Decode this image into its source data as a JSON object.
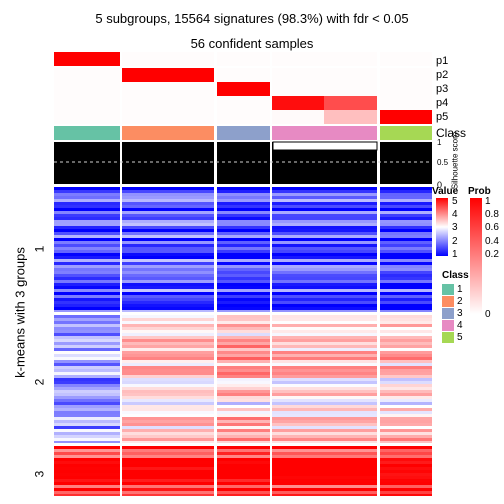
{
  "title": "5 subgroups, 15564 signatures (98.3%) with fdr < 0.05",
  "subtitle": "56 confident samples",
  "chart_data": {
    "type": "heatmap",
    "ylabel": "k-means with 3 groups",
    "row_groups": [
      "1",
      "2",
      "3"
    ],
    "prob_tracks": [
      "p1",
      "p2",
      "p3",
      "p4",
      "p5"
    ],
    "class_track_label": "Class",
    "silhouette_label": "Silhouette score",
    "silhouette_ticks": [
      "1",
      "0.5",
      "0"
    ],
    "value_legend": {
      "title": "Value",
      "ticks": [
        "5",
        "4",
        "3",
        "2",
        "1"
      ],
      "colors": [
        "#ff0000",
        "#ffffff",
        "#0000ff"
      ]
    },
    "prob_legend": {
      "title": "Prob",
      "ticks": [
        "1",
        "0.8",
        "0.6",
        "0.4",
        "0.2",
        "0"
      ],
      "colors": [
        "#ff0000",
        "#ffffff"
      ]
    },
    "class_legend": {
      "title": "Class",
      "entries": [
        {
          "label": "1",
          "color": "#66c2a5"
        },
        {
          "label": "2",
          "color": "#fc8d62"
        },
        {
          "label": "3",
          "color": "#8da0cb"
        },
        {
          "label": "4",
          "color": "#e78ac3"
        },
        {
          "label": "5",
          "color": "#a6d854"
        }
      ]
    },
    "column_classes": [
      1,
      2,
      3,
      4,
      5
    ],
    "column_class_widths": [
      12,
      16,
      9,
      18,
      9
    ],
    "probabilities": {
      "p1": [
        1,
        0,
        0,
        0,
        0
      ],
      "p2": [
        0,
        1,
        0,
        0,
        0
      ],
      "p3": [
        0,
        0,
        1,
        0,
        0
      ],
      "p4": [
        0,
        0,
        0,
        0.9,
        0
      ],
      "p5": [
        0,
        0,
        0,
        0.1,
        1
      ]
    },
    "row_group_mean_values": {
      "1": [
        1.6,
        1.7,
        1.5,
        1.6,
        1.5
      ],
      "2": [
        2.2,
        3.2,
        3.4,
        3.2,
        3.3
      ],
      "3": [
        4.6,
        4.6,
        4.7,
        4.6,
        4.7
      ]
    }
  }
}
